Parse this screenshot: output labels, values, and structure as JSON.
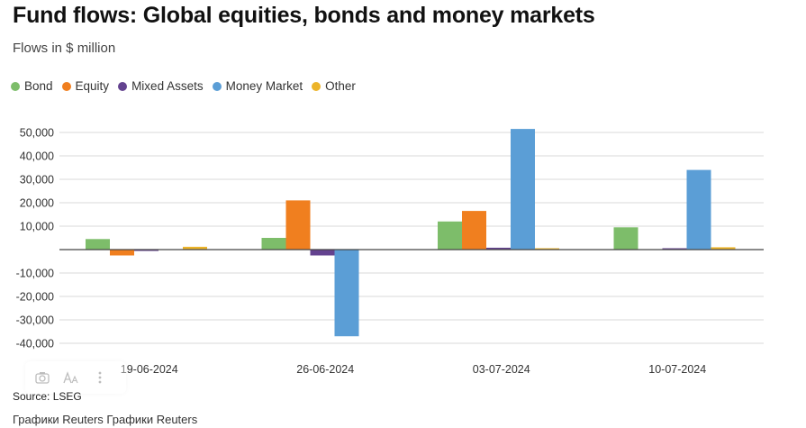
{
  "header": {
    "title": "Fund flows: Global equities, bonds and money markets",
    "subtitle": "Flows in $ million"
  },
  "footer": {
    "source": "Source: LSEG",
    "credit": "Графики Reuters Графики Reuters"
  },
  "colors": {
    "Bond": "#7dbd6a",
    "Equity": "#f07f1f",
    "Mixed Assets": "#63428f",
    "Money Market": "#5b9ed6",
    "Other": "#ecb42a",
    "grid": "#d8d8d8",
    "zero": "#444444"
  },
  "icons": [
    "camera-icon",
    "text-size-icon",
    "more-icon"
  ],
  "chart_data": {
    "type": "bar",
    "title": "Fund flows: Global equities, bonds and money markets",
    "ylabel": "Flows in $ million",
    "xlabel": "",
    "ylim": [
      -40000,
      50000
    ],
    "yticks": [
      {
        "value": 50000,
        "label": "50,000"
      },
      {
        "value": 40000,
        "label": "40,000"
      },
      {
        "value": 30000,
        "label": "30,000"
      },
      {
        "value": 20000,
        "label": "20,000"
      },
      {
        "value": 10000,
        "label": "10,000"
      },
      {
        "value": 0,
        "label": ""
      },
      {
        "value": -10000,
        "label": "-10,000"
      },
      {
        "value": -20000,
        "label": "-20,000"
      },
      {
        "value": -30000,
        "label": "-30,000"
      },
      {
        "value": -40000,
        "label": "-40,000"
      }
    ],
    "grid": true,
    "legend_position": "top-left",
    "categories": [
      "19-06-2024",
      "26-06-2024",
      "03-07-2024",
      "10-07-2024"
    ],
    "series": [
      {
        "name": "Bond",
        "values": [
          4500,
          5000,
          12000,
          9500
        ]
      },
      {
        "name": "Equity",
        "values": [
          -2500,
          21000,
          16500,
          0
        ]
      },
      {
        "name": "Mixed Assets",
        "values": [
          -300,
          -2500,
          800,
          500
        ]
      },
      {
        "name": "Money Market",
        "values": [
          0,
          -37000,
          51500,
          34000
        ]
      },
      {
        "name": "Other",
        "values": [
          1200,
          0,
          300,
          1000
        ]
      }
    ]
  }
}
